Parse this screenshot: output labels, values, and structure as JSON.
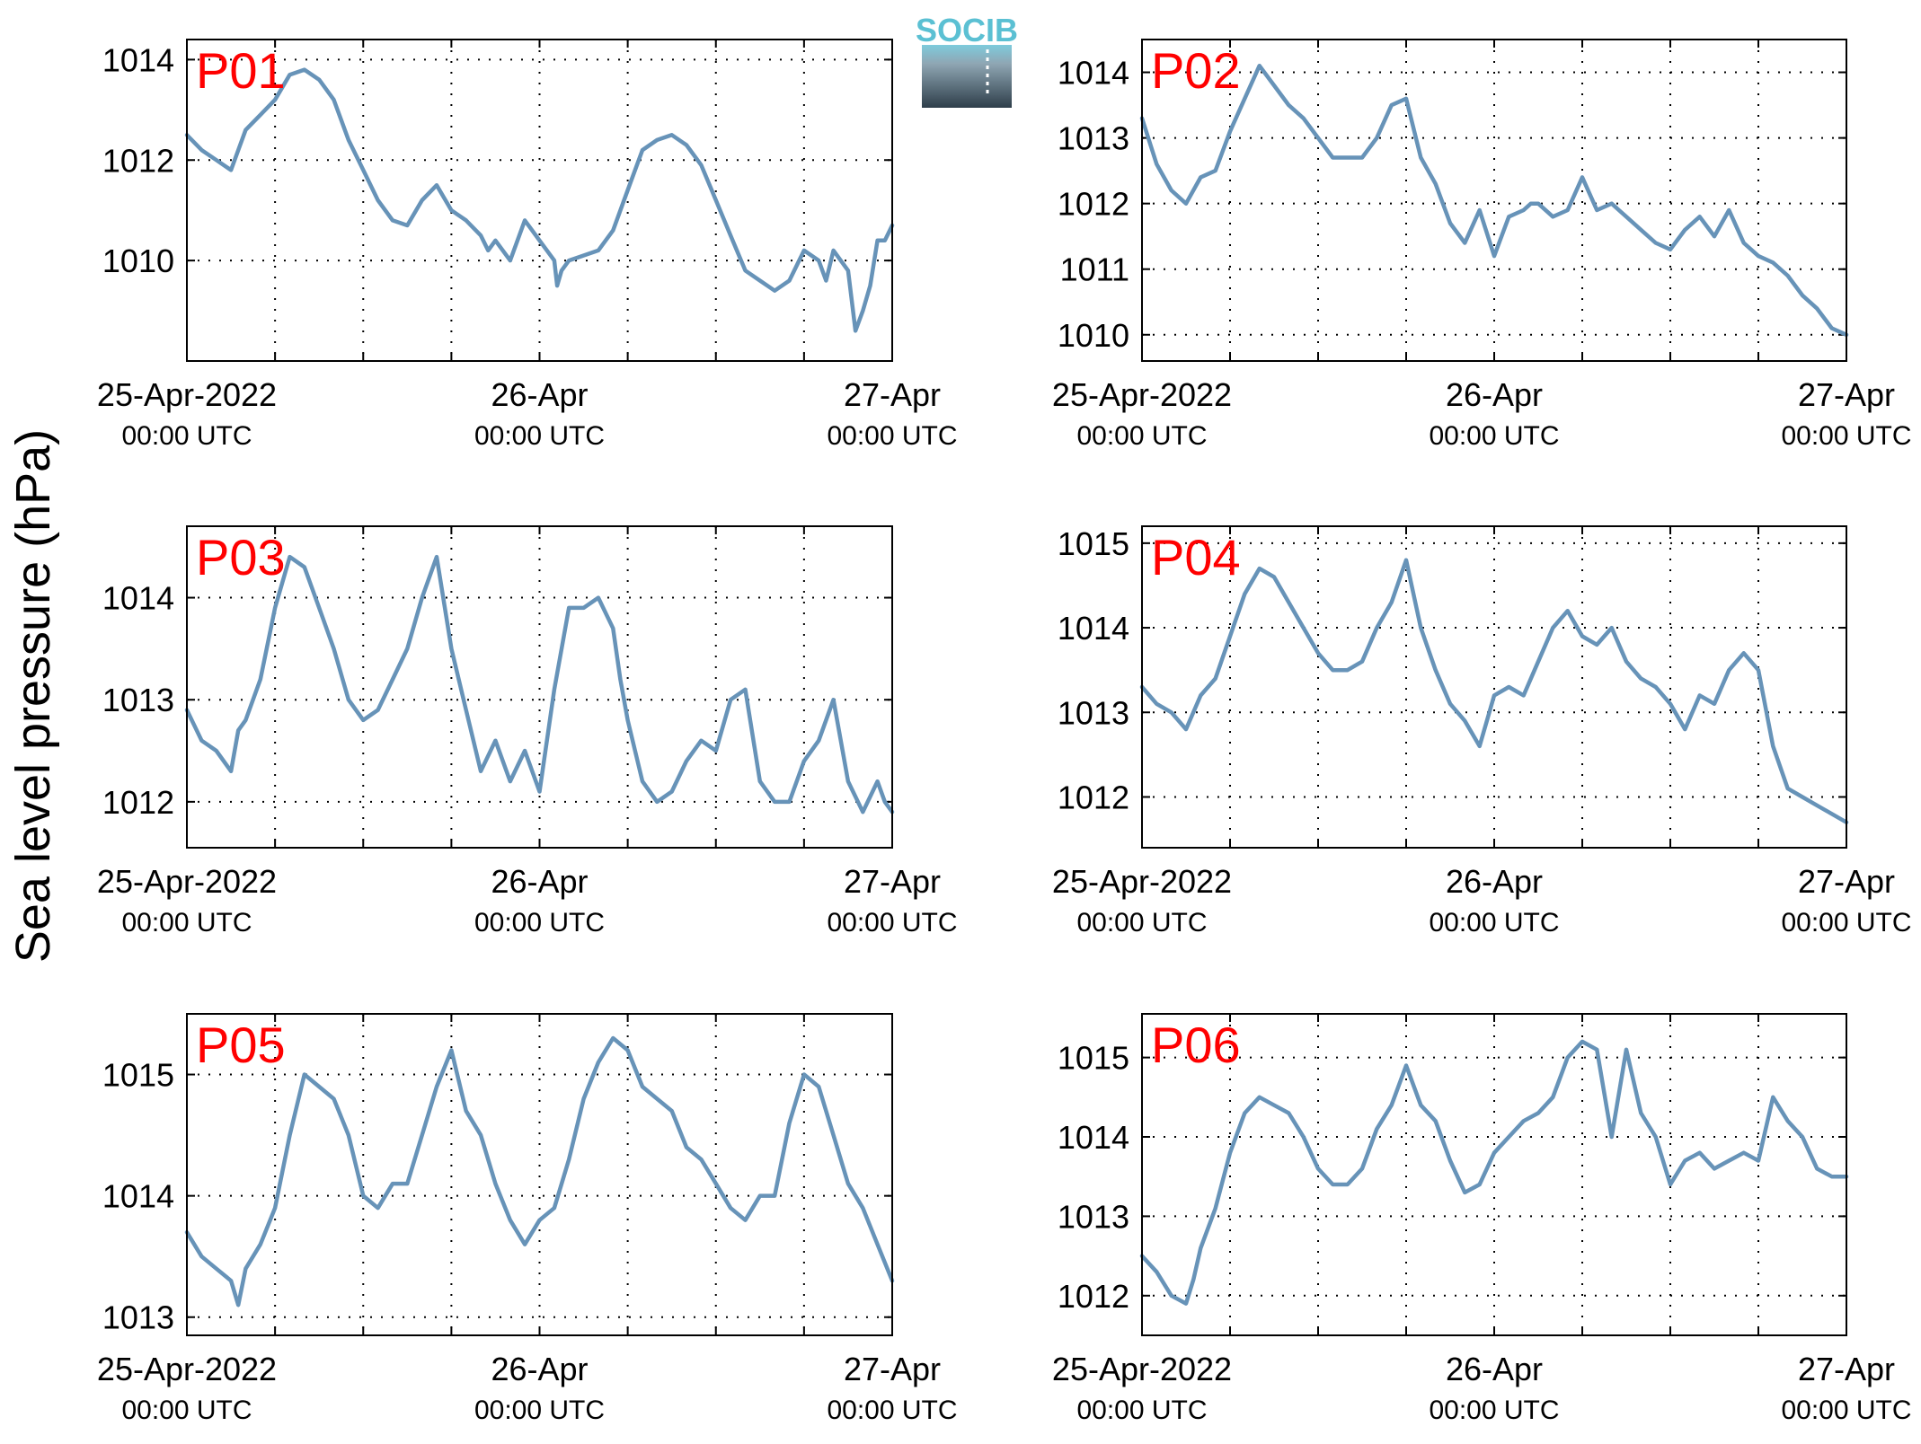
{
  "figure": {
    "ylabel": "Sea level pressure (hPa)",
    "logo_text": "SOCIB",
    "line_color": "#6793b8",
    "label_color": "#ff0000"
  },
  "chart_data": [
    {
      "type": "line",
      "label": "P01",
      "xlim": [
        0,
        48
      ],
      "ylim": [
        1008.0,
        1014.4
      ],
      "yticks": [
        1010,
        1012,
        1014
      ],
      "xticks": [
        0,
        6,
        12,
        18,
        24,
        30,
        36,
        42,
        48
      ],
      "xtick_labels": [
        {
          "at": 0,
          "date": "25-Apr-2022",
          "time": "00:00 UTC"
        },
        {
          "at": 24,
          "date": "26-Apr",
          "time": "00:00 UTC"
        },
        {
          "at": 48,
          "date": "27-Apr",
          "time": "00:00 UTC"
        }
      ],
      "x": [
        0,
        1,
        2,
        3,
        3.5,
        4,
        5,
        6,
        7,
        8,
        9,
        10,
        11,
        12,
        13,
        14,
        15,
        16,
        17,
        18,
        19,
        20,
        20.5,
        21,
        22,
        23,
        24,
        25,
        25.2,
        25.5,
        26,
        27,
        28,
        29,
        30,
        31,
        32,
        33,
        34,
        35,
        36,
        37,
        38,
        39,
        40,
        41,
        42,
        43,
        43.5,
        44,
        45,
        45.5,
        46,
        46.5,
        47,
        47.5,
        48
      ],
      "y": [
        1012.5,
        1012.2,
        1012.0,
        1011.8,
        1012.2,
        1012.6,
        1012.9,
        1013.2,
        1013.7,
        1013.8,
        1013.6,
        1013.2,
        1012.4,
        1011.8,
        1011.2,
        1010.8,
        1010.7,
        1011.2,
        1011.5,
        1011.0,
        1010.8,
        1010.5,
        1010.2,
        1010.4,
        1010.0,
        1010.8,
        1010.4,
        1010.0,
        1009.5,
        1009.8,
        1010.0,
        1010.1,
        1010.2,
        1010.6,
        1011.4,
        1012.2,
        1012.4,
        1012.5,
        1012.3,
        1011.9,
        1011.2,
        1010.5,
        1009.8,
        1009.6,
        1009.4,
        1009.6,
        1010.2,
        1010.0,
        1009.6,
        1010.2,
        1009.8,
        1008.6,
        1009.0,
        1009.5,
        1010.4,
        1010.4,
        1010.7
      ]
    },
    {
      "type": "line",
      "label": "P02",
      "xlim": [
        0,
        48
      ],
      "ylim": [
        1009.6,
        1014.5
      ],
      "yticks": [
        1010,
        1011,
        1012,
        1013,
        1014
      ],
      "xticks": [
        0,
        6,
        12,
        18,
        24,
        30,
        36,
        42,
        48
      ],
      "xtick_labels": [
        {
          "at": 0,
          "date": "25-Apr-2022",
          "time": "00:00 UTC"
        },
        {
          "at": 24,
          "date": "26-Apr",
          "time": "00:00 UTC"
        },
        {
          "at": 48,
          "date": "27-Apr",
          "time": "00:00 UTC"
        }
      ],
      "x": [
        0,
        1,
        2,
        3,
        4,
        5,
        6,
        7,
        8,
        9,
        10,
        11,
        12,
        13,
        14,
        15,
        16,
        17,
        18,
        19,
        20,
        21,
        22,
        23,
        24,
        25,
        26,
        26.5,
        27,
        28,
        29,
        30,
        31,
        32,
        32.5,
        33,
        34,
        35,
        36,
        37,
        38,
        39,
        40,
        41,
        42,
        43,
        44,
        45,
        46,
        47,
        48
      ],
      "y": [
        1013.3,
        1012.6,
        1012.2,
        1012.0,
        1012.4,
        1012.5,
        1013.1,
        1013.6,
        1014.1,
        1013.8,
        1013.5,
        1013.3,
        1013.0,
        1012.7,
        1012.7,
        1012.7,
        1013.0,
        1013.5,
        1013.6,
        1012.7,
        1012.3,
        1011.7,
        1011.4,
        1011.9,
        1011.2,
        1011.8,
        1011.9,
        1012.0,
        1012.0,
        1011.8,
        1011.9,
        1012.4,
        1011.9,
        1012.0,
        1011.9,
        1011.8,
        1011.6,
        1011.4,
        1011.3,
        1011.6,
        1011.8,
        1011.5,
        1011.9,
        1011.4,
        1011.2,
        1011.1,
        1010.9,
        1010.6,
        1010.4,
        1010.1,
        1010.0
      ]
    },
    {
      "type": "line",
      "label": "P03",
      "xlim": [
        0,
        48
      ],
      "ylim": [
        1011.55,
        1014.7
      ],
      "yticks": [
        1012,
        1013,
        1014
      ],
      "xticks": [
        0,
        6,
        12,
        18,
        24,
        30,
        36,
        42,
        48
      ],
      "xtick_labels": [
        {
          "at": 0,
          "date": "25-Apr-2022",
          "time": "00:00 UTC"
        },
        {
          "at": 24,
          "date": "26-Apr",
          "time": "00:00 UTC"
        },
        {
          "at": 48,
          "date": "27-Apr",
          "time": "00:00 UTC"
        }
      ],
      "x": [
        0,
        1,
        2,
        3,
        3.5,
        4,
        5,
        6,
        7,
        8,
        9,
        10,
        11,
        12,
        13,
        14,
        15,
        16,
        17,
        18,
        19,
        20,
        21,
        22,
        23,
        24,
        25,
        26,
        27,
        28,
        29,
        29.5,
        30,
        31,
        32,
        33,
        34,
        35,
        36,
        37,
        38,
        39,
        40,
        41,
        42,
        43,
        44,
        45,
        46,
        47,
        47.5,
        48
      ],
      "y": [
        1012.9,
        1012.6,
        1012.5,
        1012.3,
        1012.7,
        1012.8,
        1013.2,
        1013.9,
        1014.4,
        1014.3,
        1013.9,
        1013.5,
        1013.0,
        1012.8,
        1012.9,
        1013.2,
        1013.5,
        1014.0,
        1014.4,
        1013.5,
        1012.9,
        1012.3,
        1012.6,
        1012.2,
        1012.5,
        1012.1,
        1013.1,
        1013.9,
        1013.9,
        1014.0,
        1013.7,
        1013.2,
        1012.8,
        1012.2,
        1012.0,
        1012.1,
        1012.4,
        1012.6,
        1012.5,
        1013.0,
        1013.1,
        1012.2,
        1012.0,
        1012.0,
        1012.4,
        1012.6,
        1013.0,
        1012.2,
        1011.9,
        1012.2,
        1012.0,
        1011.9
      ]
    },
    {
      "type": "line",
      "label": "P04",
      "xlim": [
        0,
        48
      ],
      "ylim": [
        1011.4,
        1015.2
      ],
      "yticks": [
        1012,
        1013,
        1014,
        1015
      ],
      "xticks": [
        0,
        6,
        12,
        18,
        24,
        30,
        36,
        42,
        48
      ],
      "xtick_labels": [
        {
          "at": 0,
          "date": "25-Apr-2022",
          "time": "00:00 UTC"
        },
        {
          "at": 24,
          "date": "26-Apr",
          "time": "00:00 UTC"
        },
        {
          "at": 48,
          "date": "27-Apr",
          "time": "00:00 UTC"
        }
      ],
      "x": [
        0,
        1,
        2,
        3,
        4,
        5,
        6,
        7,
        8,
        9,
        10,
        11,
        12,
        13,
        14,
        15,
        16,
        17,
        18,
        19,
        20,
        21,
        22,
        23,
        24,
        25,
        26,
        27,
        28,
        29,
        30,
        31,
        32,
        33,
        34,
        35,
        36,
        37,
        38,
        39,
        40,
        41,
        42,
        43,
        44,
        45,
        46,
        47,
        48
      ],
      "y": [
        1013.3,
        1013.1,
        1013.0,
        1012.8,
        1013.2,
        1013.4,
        1013.9,
        1014.4,
        1014.7,
        1014.6,
        1014.3,
        1014.0,
        1013.7,
        1013.5,
        1013.5,
        1013.6,
        1014.0,
        1014.3,
        1014.8,
        1014.0,
        1013.5,
        1013.1,
        1012.9,
        1012.6,
        1013.2,
        1013.3,
        1013.2,
        1013.6,
        1014.0,
        1014.2,
        1013.9,
        1013.8,
        1014.0,
        1013.6,
        1013.4,
        1013.3,
        1013.1,
        1012.8,
        1013.2,
        1013.1,
        1013.5,
        1013.7,
        1013.5,
        1012.6,
        1012.1,
        1012.0,
        1011.9,
        1011.8,
        1011.7
      ]
    },
    {
      "type": "line",
      "label": "P05",
      "xlim": [
        0,
        48
      ],
      "ylim": [
        1012.85,
        1015.5
      ],
      "yticks": [
        1013,
        1014,
        1015
      ],
      "xticks": [
        0,
        6,
        12,
        18,
        24,
        30,
        36,
        42,
        48
      ],
      "xtick_labels": [
        {
          "at": 0,
          "date": "25-Apr-2022",
          "time": "00:00 UTC"
        },
        {
          "at": 24,
          "date": "26-Apr",
          "time": "00:00 UTC"
        },
        {
          "at": 48,
          "date": "27-Apr",
          "time": "00:00 UTC"
        }
      ],
      "x": [
        0,
        1,
        2,
        3,
        3.5,
        4,
        5,
        6,
        7,
        8,
        9,
        10,
        11,
        12,
        13,
        14,
        15,
        16,
        17,
        18,
        19,
        20,
        21,
        22,
        23,
        24,
        25,
        26,
        27,
        28,
        29,
        30,
        31,
        32,
        33,
        34,
        35,
        36,
        37,
        38,
        39,
        40,
        41,
        42,
        43,
        44,
        45,
        46,
        47,
        48
      ],
      "y": [
        1013.7,
        1013.5,
        1013.4,
        1013.3,
        1013.1,
        1013.4,
        1013.6,
        1013.9,
        1014.5,
        1015.0,
        1014.9,
        1014.8,
        1014.5,
        1014.0,
        1013.9,
        1014.1,
        1014.1,
        1014.5,
        1014.9,
        1015.2,
        1014.7,
        1014.5,
        1014.1,
        1013.8,
        1013.6,
        1013.8,
        1013.9,
        1014.3,
        1014.8,
        1015.1,
        1015.3,
        1015.2,
        1014.9,
        1014.8,
        1014.7,
        1014.4,
        1014.3,
        1014.1,
        1013.9,
        1013.8,
        1014.0,
        1014.0,
        1014.6,
        1015.0,
        1014.9,
        1014.5,
        1014.1,
        1013.9,
        1013.6,
        1013.3
      ]
    },
    {
      "type": "line",
      "label": "P06",
      "xlim": [
        0,
        48
      ],
      "ylim": [
        1011.5,
        1015.55
      ],
      "yticks": [
        1012,
        1013,
        1014,
        1015
      ],
      "xticks": [
        0,
        6,
        12,
        18,
        24,
        30,
        36,
        42,
        48
      ],
      "xtick_labels": [
        {
          "at": 0,
          "date": "25-Apr-2022",
          "time": "00:00 UTC"
        },
        {
          "at": 24,
          "date": "26-Apr",
          "time": "00:00 UTC"
        },
        {
          "at": 48,
          "date": "27-Apr",
          "time": "00:00 UTC"
        }
      ],
      "x": [
        0,
        1,
        2,
        3,
        3.5,
        4,
        5,
        6,
        7,
        8,
        9,
        10,
        11,
        12,
        13,
        14,
        15,
        16,
        17,
        18,
        19,
        20,
        21,
        22,
        23,
        24,
        25,
        26,
        27,
        28,
        29,
        30,
        31,
        32,
        33,
        34,
        35,
        36,
        37,
        38,
        39,
        40,
        41,
        42,
        43,
        44,
        45,
        46,
        47,
        48
      ],
      "y": [
        1012.5,
        1012.3,
        1012.0,
        1011.9,
        1012.2,
        1012.6,
        1013.1,
        1013.8,
        1014.3,
        1014.5,
        1014.4,
        1014.3,
        1014.0,
        1013.6,
        1013.4,
        1013.4,
        1013.6,
        1014.1,
        1014.4,
        1014.9,
        1014.4,
        1014.2,
        1013.7,
        1013.3,
        1013.4,
        1013.8,
        1014.0,
        1014.2,
        1014.3,
        1014.5,
        1015.0,
        1015.2,
        1015.1,
        1014.0,
        1015.1,
        1014.3,
        1014.0,
        1013.4,
        1013.7,
        1013.8,
        1013.6,
        1013.7,
        1013.8,
        1013.7,
        1014.5,
        1014.2,
        1014.0,
        1013.6,
        1013.5,
        1013.5
      ]
    }
  ]
}
